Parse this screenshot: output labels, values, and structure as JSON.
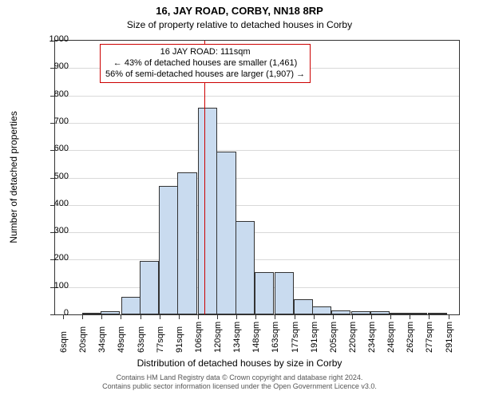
{
  "title_main": "16, JAY ROAD, CORBY, NN18 8RP",
  "title_sub": "Size of property relative to detached houses in Corby",
  "yaxis_title": "Number of detached properties",
  "xaxis_title": "Distribution of detached houses by size in Corby",
  "footer_line1": "Contains HM Land Registry data © Crown copyright and database right 2024.",
  "footer_line2": "Contains public sector information licensed under the Open Government Licence v3.0.",
  "annotation": {
    "line1": "16 JAY ROAD: 111sqm",
    "line2": "← 43% of detached houses are smaller (1,461)",
    "line3": "56% of semi-detached houses are larger (1,907) →"
  },
  "chart": {
    "type": "histogram",
    "ylim": [
      0,
      1000
    ],
    "ytick_step": 100,
    "xlim": [
      0,
      300
    ],
    "xtick_start": 6,
    "xtick_step": 14.3,
    "xtick_count": 21,
    "bin_width": 14.3,
    "bar_fill": "#c9dbef",
    "bar_stroke": "#333333",
    "grid_color": "#d9d9d9",
    "marker_x": 111,
    "marker_color": "#cc0000",
    "y_ticks": [
      0,
      100,
      200,
      300,
      400,
      500,
      600,
      700,
      800,
      900,
      1000
    ],
    "x_tick_labels": [
      "6sqm",
      "20sqm",
      "34sqm",
      "49sqm",
      "63sqm",
      "77sqm",
      "91sqm",
      "106sqm",
      "120sqm",
      "134sqm",
      "148sqm",
      "163sqm",
      "177sqm",
      "191sqm",
      "205sqm",
      "220sqm",
      "234sqm",
      "248sqm",
      "262sqm",
      "277sqm",
      "291sqm"
    ],
    "bins": [
      {
        "x": 6,
        "count": 0
      },
      {
        "x": 20,
        "count": 3
      },
      {
        "x": 34,
        "count": 12
      },
      {
        "x": 49,
        "count": 65
      },
      {
        "x": 63,
        "count": 195
      },
      {
        "x": 77,
        "count": 470
      },
      {
        "x": 91,
        "count": 520
      },
      {
        "x": 106,
        "count": 755
      },
      {
        "x": 120,
        "count": 595
      },
      {
        "x": 134,
        "count": 340
      },
      {
        "x": 148,
        "count": 155
      },
      {
        "x": 163,
        "count": 155
      },
      {
        "x": 177,
        "count": 55
      },
      {
        "x": 191,
        "count": 30
      },
      {
        "x": 205,
        "count": 15
      },
      {
        "x": 220,
        "count": 12
      },
      {
        "x": 234,
        "count": 12
      },
      {
        "x": 248,
        "count": 5
      },
      {
        "x": 262,
        "count": 2
      },
      {
        "x": 277,
        "count": 2
      },
      {
        "x": 291,
        "count": 0
      }
    ]
  }
}
